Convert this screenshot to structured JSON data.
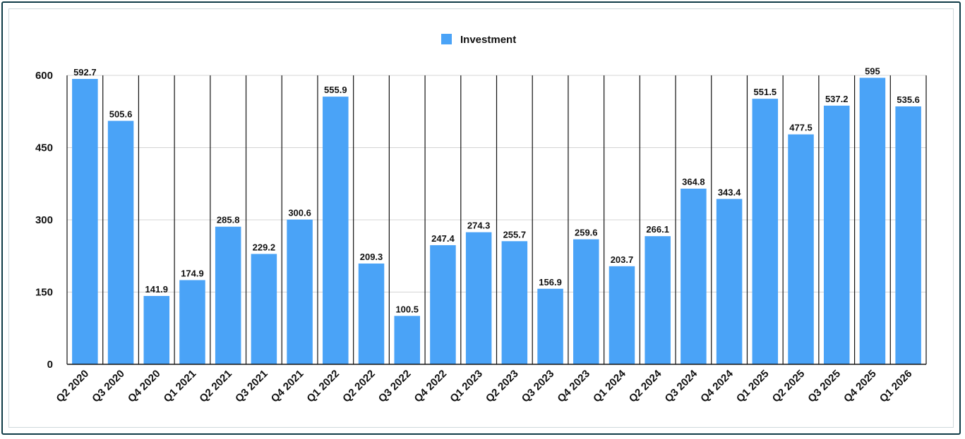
{
  "chart_data": {
    "type": "bar",
    "title": "",
    "xlabel": "",
    "ylabel": "",
    "legend": {
      "position": "top-center",
      "label": "Investment"
    },
    "series": [
      {
        "name": "Investment",
        "color": "#4aa3f7",
        "values": [
          592.7,
          505.6,
          141.9,
          174.9,
          285.8,
          229.2,
          300.6,
          555.9,
          209.3,
          100.5,
          247.4,
          274.3,
          255.7,
          156.9,
          259.6,
          203.7,
          266.1,
          364.8,
          343.4,
          551.5,
          477.5,
          537.2,
          595,
          535.6
        ]
      }
    ],
    "categories": [
      "Q2 2020",
      "Q3 2020",
      "Q4 2020",
      "Q1 2021",
      "Q2 2021",
      "Q3 2021",
      "Q4 2021",
      "Q1 2022",
      "Q2 2022",
      "Q3 2022",
      "Q4 2022",
      "Q1 2023",
      "Q2 2023",
      "Q3 2023",
      "Q4 2023",
      "Q1 2024",
      "Q2 2024",
      "Q3 2024",
      "Q4 2024",
      "Q1 2025",
      "Q2 2025",
      "Q3 2025",
      "Q4 2025",
      "Q1 2026"
    ],
    "data_labels": [
      "592.7",
      "505.6",
      "141.9",
      "174.9",
      "285.8",
      "229.2",
      "300.6",
      "555.9",
      "209.3",
      "100.5",
      "247.4",
      "274.3",
      "255.7",
      "156.9",
      "259.6",
      "203.7",
      "266.1",
      "364.8",
      "343.4",
      "551.5",
      "477.5",
      "537.2",
      "595",
      "535.6"
    ],
    "ylim": [
      0,
      600
    ],
    "yticks": [
      "0",
      "150",
      "300",
      "450",
      "600"
    ],
    "grid": true
  }
}
